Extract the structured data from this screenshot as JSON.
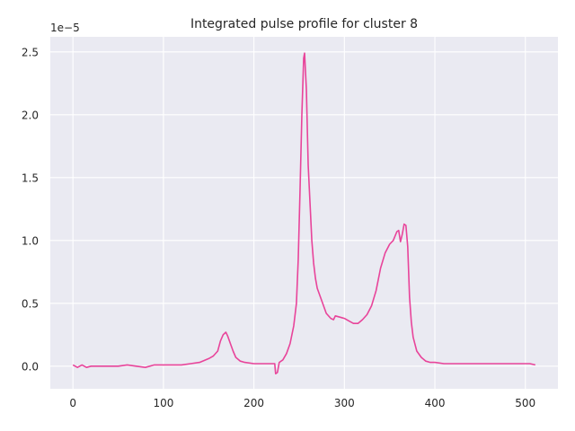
{
  "chart_data": {
    "type": "line",
    "title": "Integrated pulse profile for cluster 8",
    "xlabel": "",
    "ylabel": "",
    "y_offset_label": "1e−5",
    "y_scale": 1e-05,
    "xlim": [
      -25,
      536
    ],
    "ylim": [
      -0.18,
      2.62
    ],
    "x_ticks": [
      0,
      100,
      200,
      300,
      400,
      500
    ],
    "y_ticks": [
      0.0,
      0.5,
      1.0,
      1.5,
      2.0,
      2.5
    ],
    "x_tick_labels": [
      "0",
      "100",
      "200",
      "300",
      "400",
      "500"
    ],
    "y_tick_labels": [
      "0.0",
      "0.5",
      "1.0",
      "1.5",
      "2.0",
      "2.5"
    ],
    "grid": true,
    "background": "#eaeaf2",
    "series": [
      {
        "color": "#e8449a",
        "x": [
          0,
          5,
          10,
          15,
          20,
          30,
          40,
          50,
          60,
          70,
          80,
          90,
          100,
          110,
          120,
          130,
          140,
          150,
          155,
          160,
          163,
          166,
          169,
          171,
          174,
          177,
          180,
          185,
          190,
          200,
          210,
          220,
          223,
          224,
          226,
          228,
          232,
          236,
          240,
          244,
          247,
          249,
          251,
          253,
          255,
          256,
          258,
          260,
          262,
          264,
          266,
          268,
          270,
          275,
          280,
          285,
          288,
          290,
          295,
          300,
          305,
          310,
          315,
          320,
          325,
          330,
          335,
          340,
          345,
          350,
          354,
          358,
          360,
          362,
          364,
          366,
          368,
          370,
          372,
          374,
          376,
          380,
          385,
          390,
          395,
          400,
          410,
          420,
          430,
          440,
          450,
          460,
          470,
          480,
          490,
          500,
          505,
          511
        ],
        "y": [
          0.01,
          -0.01,
          0.01,
          -0.01,
          0.0,
          0.0,
          0.0,
          0.0,
          0.01,
          0.0,
          -0.01,
          0.01,
          0.01,
          0.01,
          0.01,
          0.02,
          0.03,
          0.06,
          0.08,
          0.12,
          0.2,
          0.25,
          0.27,
          0.24,
          0.18,
          0.12,
          0.07,
          0.04,
          0.03,
          0.02,
          0.02,
          0.02,
          0.02,
          -0.06,
          -0.05,
          0.03,
          0.05,
          0.1,
          0.18,
          0.32,
          0.5,
          0.85,
          1.4,
          2.0,
          2.45,
          2.49,
          2.2,
          1.6,
          1.3,
          1.0,
          0.82,
          0.7,
          0.62,
          0.52,
          0.42,
          0.38,
          0.37,
          0.4,
          0.39,
          0.38,
          0.36,
          0.34,
          0.34,
          0.37,
          0.41,
          0.48,
          0.6,
          0.78,
          0.9,
          0.97,
          1.0,
          1.07,
          1.08,
          0.99,
          1.05,
          1.13,
          1.12,
          0.95,
          0.55,
          0.35,
          0.23,
          0.12,
          0.07,
          0.04,
          0.03,
          0.03,
          0.02,
          0.02,
          0.02,
          0.02,
          0.02,
          0.02,
          0.02,
          0.02,
          0.02,
          0.02,
          0.02,
          0.01
        ]
      }
    ]
  }
}
